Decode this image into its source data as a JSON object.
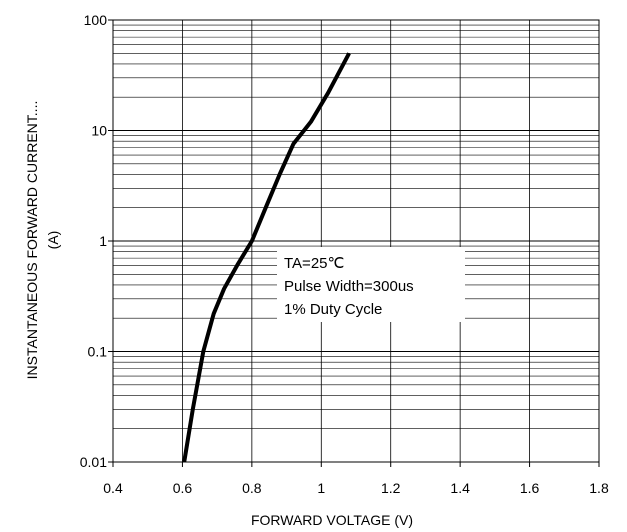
{
  "chart_data": {
    "type": "line",
    "xlabel": "FORWARD VOLTAGE (V)",
    "ylabel_line1": "INSTANTANEOUS FORWARD CURRENT....",
    "ylabel_line2": "(A)",
    "xlim": [
      0.4,
      1.8
    ],
    "ylim": [
      0.01,
      100
    ],
    "yscale": "log",
    "grid": true,
    "x_ticks": [
      0.4,
      0.6,
      0.8,
      1.0,
      1.2,
      1.4,
      1.6,
      1.8
    ],
    "x_tick_labels": [
      "0.4",
      "0.6",
      "0.8",
      "1",
      "1.2",
      "1.4",
      "1.6",
      "1.8"
    ],
    "y_ticks": [
      0.01,
      0.1,
      1,
      10,
      100
    ],
    "y_tick_labels": [
      "0.01",
      "0.1",
      "1",
      "10",
      "100"
    ],
    "series": [
      {
        "x": [
          0.605,
          0.63,
          0.66,
          0.69,
          0.72,
          0.76,
          0.8,
          0.84,
          0.88,
          0.92,
          0.97,
          1.02,
          1.08
        ],
        "y": [
          0.01,
          0.03,
          0.1,
          0.22,
          0.37,
          0.62,
          1.0,
          2.0,
          4.0,
          7.6,
          12.0,
          22.0,
          50.0
        ]
      }
    ],
    "annotation": {
      "line1": "TA=25℃",
      "line2": "Pulse Width=300us",
      "line3": "1% Duty Cycle"
    }
  }
}
